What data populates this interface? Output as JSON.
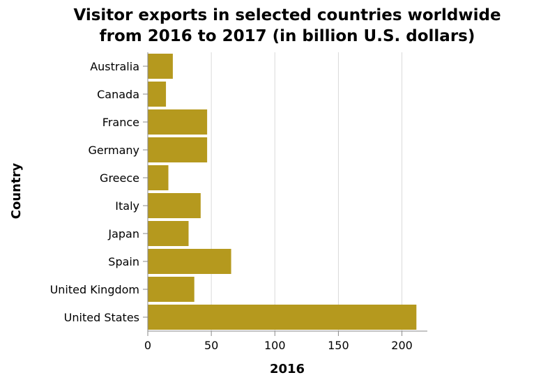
{
  "chart_data": {
    "type": "bar",
    "orientation": "horizontal",
    "title_lines": [
      "Visitor exports in selected countries worldwide",
      "from 2016 to 2017 (in billion U.S. dollars)"
    ],
    "xlabel": "2016",
    "ylabel": "Country",
    "categories": [
      "Australia",
      "Canada",
      "France",
      "Germany",
      "Greece",
      "Italy",
      "Japan",
      "Spain",
      "United Kingdom",
      "United States"
    ],
    "values": [
      19.7,
      14.3,
      46.7,
      46.7,
      16.2,
      41.6,
      32.1,
      65.6,
      36.6,
      211.4
    ],
    "xlim": [
      0,
      220
    ],
    "xticks": [
      0,
      50,
      100,
      150,
      200
    ],
    "grid": "vertical",
    "bar_color": "#b5991e"
  }
}
